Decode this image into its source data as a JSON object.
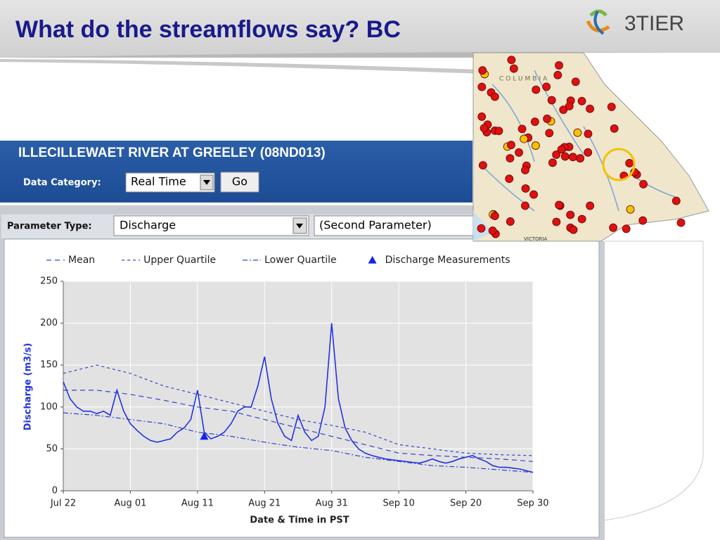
{
  "header": {
    "title": "What do the streamflows say?  BC",
    "logo": "3TIER"
  },
  "station": {
    "title": "ILLECILLEWAET RIVER AT GREELEY (08ND013)",
    "category_label": "Data Category:",
    "category_value": "Real Time",
    "button": "Go"
  },
  "parameters": {
    "label": "Parameter Type:",
    "first": "Discharge",
    "second": "(Second Parameter)"
  },
  "map": {
    "labels": [
      "COLUMBIA",
      "VICTORIA"
    ]
  },
  "chart_data": {
    "type": "line",
    "xlabel": "Date & Time in PST",
    "ylabel": "Discharge (m3/s)",
    "x": [
      "Jul 22",
      "Jul 23",
      "Jul 24",
      "Jul 25",
      "Jul 26",
      "Jul 27",
      "Jul 28",
      "Jul 29",
      "Jul 30",
      "Jul 31",
      "Aug 01",
      "Aug 02",
      "Aug 03",
      "Aug 04",
      "Aug 05",
      "Aug 06",
      "Aug 07",
      "Aug 08",
      "Aug 09",
      "Aug 10",
      "Aug 11",
      "Aug 12",
      "Aug 13",
      "Aug 14",
      "Aug 15",
      "Aug 16",
      "Aug 17",
      "Aug 18",
      "Aug 19",
      "Aug 20",
      "Aug 21",
      "Aug 22",
      "Aug 23",
      "Aug 24",
      "Aug 25",
      "Aug 26",
      "Aug 27",
      "Aug 28",
      "Aug 29",
      "Aug 30",
      "Aug 31",
      "Sep 01",
      "Sep 02",
      "Sep 03",
      "Sep 04",
      "Sep 05",
      "Sep 06",
      "Sep 07",
      "Sep 08",
      "Sep 09",
      "Sep 10",
      "Sep 11",
      "Sep 12",
      "Sep 13",
      "Sep 14",
      "Sep 15",
      "Sep 16",
      "Sep 17",
      "Sep 18",
      "Sep 19",
      "Sep 20",
      "Sep 21",
      "Sep 22",
      "Sep 23",
      "Sep 24",
      "Sep 25",
      "Sep 26",
      "Sep 27",
      "Sep 28",
      "Sep 29",
      "Sep 30"
    ],
    "xticks": [
      "Jul 22",
      "Aug 01",
      "Aug 11",
      "Aug 21",
      "Aug 31",
      "Sep 10",
      "Sep 20",
      "Sep 30"
    ],
    "ylim": [
      0,
      250
    ],
    "yticks": [
      0,
      50,
      100,
      150,
      200,
      250
    ],
    "grid": true,
    "series": [
      {
        "color": "#2233dd",
        "style": "solid",
        "values": [
          130,
          110,
          100,
          95,
          95,
          92,
          95,
          90,
          120,
          95,
          80,
          72,
          65,
          60,
          58,
          60,
          62,
          70,
          75,
          85,
          120,
          70,
          62,
          65,
          70,
          80,
          95,
          100,
          100,
          125,
          160,
          110,
          80,
          65,
          60,
          90,
          70,
          60,
          65,
          100,
          200,
          110,
          75,
          60,
          50,
          45,
          42,
          40,
          38,
          37,
          36,
          35,
          34,
          33,
          35,
          38,
          35,
          33,
          35,
          38,
          40,
          42,
          38,
          35,
          30,
          28,
          28,
          27,
          26,
          24,
          22
        ]
      },
      {
        "name": "Mean",
        "color": "#3344cc",
        "style": "dash",
        "x": [
          "Jul 22",
          "Jul 27",
          "Aug 01",
          "Aug 06",
          "Aug 11",
          "Aug 16",
          "Aug 21",
          "Aug 26",
          "Aug 31",
          "Sep 05",
          "Sep 10",
          "Sep 15",
          "Sep 20",
          "Sep 25",
          "Sep 30"
        ],
        "values": [
          120,
          120,
          115,
          108,
          100,
          95,
          85,
          75,
          65,
          55,
          45,
          42,
          40,
          38,
          35
        ]
      },
      {
        "name": "Upper Quartile",
        "color": "#3344cc",
        "style": "shortdash",
        "x": [
          "Jul 22",
          "Jul 27",
          "Aug 01",
          "Aug 06",
          "Aug 11",
          "Aug 16",
          "Aug 21",
          "Aug 26",
          "Aug 31",
          "Sep 05",
          "Sep 10",
          "Sep 15",
          "Sep 20",
          "Sep 25",
          "Sep 30"
        ],
        "values": [
          140,
          150,
          140,
          125,
          115,
          105,
          95,
          85,
          78,
          70,
          55,
          50,
          45,
          43,
          42
        ]
      },
      {
        "name": "Lower Quartile",
        "color": "#3344cc",
        "style": "dashdot",
        "x": [
          "Jul 22",
          "Jul 27",
          "Aug 01",
          "Aug 06",
          "Aug 11",
          "Aug 16",
          "Aug 21",
          "Aug 26",
          "Aug 31",
          "Sep 05",
          "Sep 10",
          "Sep 15",
          "Sep 20",
          "Sep 25",
          "Sep 30"
        ],
        "values": [
          93,
          90,
          85,
          80,
          70,
          65,
          58,
          52,
          48,
          40,
          35,
          30,
          28,
          25,
          22
        ]
      },
      {
        "name": "Discharge Measurements",
        "color": "#1122ee",
        "style": "marker",
        "x": [
          "Aug 12"
        ],
        "values": [
          65
        ]
      }
    ]
  }
}
